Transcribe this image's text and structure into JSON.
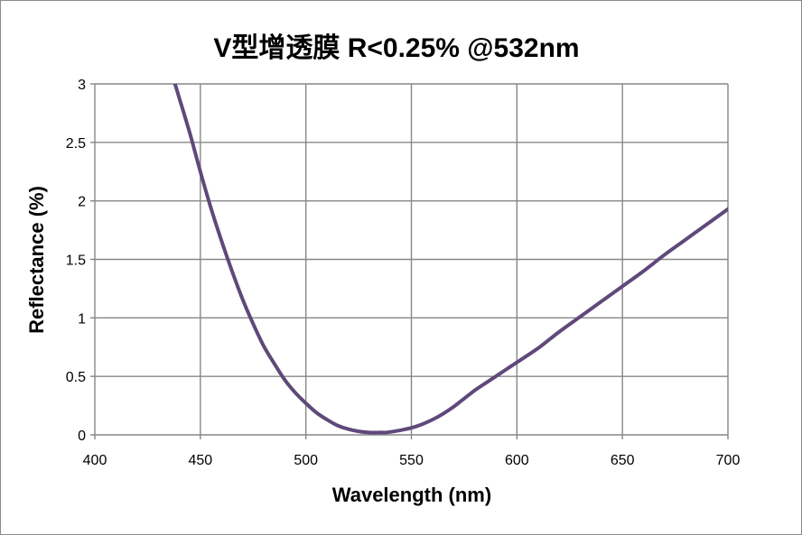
{
  "chart_data": {
    "type": "line",
    "title": "V型增透膜 R<0.25% @532nm",
    "xlabel": "Wavelength (nm)",
    "ylabel": "Reflectance (%)",
    "xlim": [
      400,
      700
    ],
    "ylim": [
      0,
      3
    ],
    "x_ticks": [
      400,
      450,
      500,
      550,
      600,
      650,
      700
    ],
    "y_ticks": [
      0,
      0.5,
      1,
      1.5,
      2,
      2.5,
      3
    ],
    "grid": true,
    "legend": "none",
    "line_color": "#5f497a",
    "series": [
      {
        "x": [
          438,
          440,
          445,
          450,
          455,
          460,
          465,
          470,
          475,
          480,
          485,
          490,
          495,
          500,
          505,
          510,
          515,
          520,
          525,
          530,
          535,
          538,
          540,
          545,
          550,
          555,
          560,
          565,
          570,
          575,
          580,
          585,
          590,
          595,
          600,
          610,
          620,
          630,
          640,
          650,
          660,
          670,
          680,
          690,
          700
        ],
        "values": [
          3.0,
          2.88,
          2.58,
          2.25,
          1.94,
          1.66,
          1.4,
          1.16,
          0.95,
          0.76,
          0.61,
          0.47,
          0.36,
          0.27,
          0.19,
          0.13,
          0.08,
          0.05,
          0.03,
          0.02,
          0.02,
          0.02,
          0.025,
          0.04,
          0.06,
          0.09,
          0.13,
          0.18,
          0.24,
          0.31,
          0.38,
          0.44,
          0.5,
          0.56,
          0.62,
          0.74,
          0.88,
          1.01,
          1.14,
          1.27,
          1.4,
          1.54,
          1.67,
          1.8,
          1.93
        ]
      }
    ]
  }
}
